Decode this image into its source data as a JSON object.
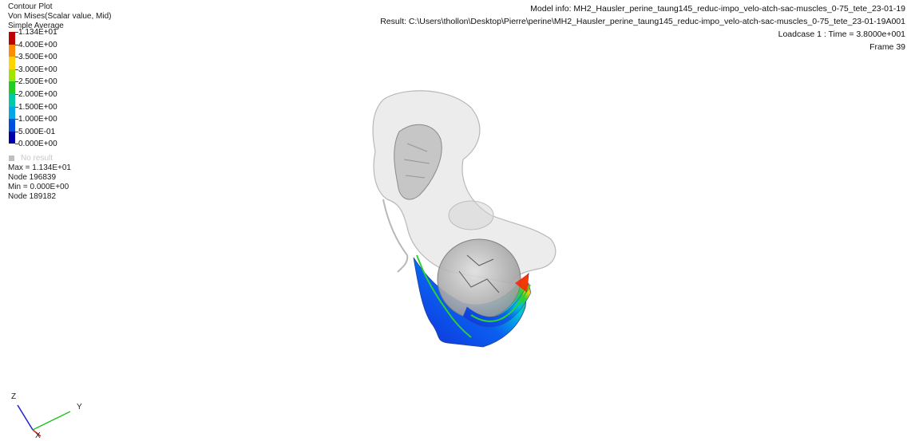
{
  "legend": {
    "title": "Contour Plot",
    "subtitle": "Von Mises(Scalar value, Mid)",
    "averaging": "Simple Average",
    "levels": [
      {
        "label": "1.134E+01",
        "color": "#c00000"
      },
      {
        "label": "4.000E+00",
        "color": "#ff2a00"
      },
      {
        "label": "3.500E+00",
        "color": "#ff8c00"
      },
      {
        "label": "3.000E+00",
        "color": "#ffd400"
      },
      {
        "label": "2.500E+00",
        "color": "#9ee600"
      },
      {
        "label": "2.000E+00",
        "color": "#22cc22"
      },
      {
        "label": "1.500E+00",
        "color": "#00c8a8"
      },
      {
        "label": "1.000E+00",
        "color": "#00a8e8"
      },
      {
        "label": "5.000E-01",
        "color": "#0050e0"
      },
      {
        "label": "0.000E+00",
        "color": "#0000a8"
      }
    ],
    "no_result_label": "No result",
    "no_result_color": "#bfbfbf"
  },
  "stats": {
    "max": "Max = 1.134E+01",
    "max_node": "Node 196839",
    "min": "Min = 0.000E+00",
    "min_node": "Node 189182"
  },
  "info": {
    "model": "Model info: MH2_Hausler_perine_taung145_reduc-impo_velo-atch-sac-muscles_0-75_tete_23-01-19",
    "result": "Result: C:\\Users\\thollon\\Desktop\\Pierre\\perine\\MH2_Hausler_perine_taung145_reduc-impo_velo-atch-sac-muscles_0-75_tete_23-01-19A001",
    "loadcase": "Loadcase 1 : Time = 3.8000e+001",
    "frame": "Frame 39"
  },
  "triad": {
    "x": "X",
    "y": "Y",
    "z": "Z",
    "x_color": "#e02020",
    "y_color": "#22c022",
    "z_color": "#2020d0"
  },
  "model": {
    "bone_color": "#d8d8d8",
    "head_color": "#bcbcbc"
  }
}
